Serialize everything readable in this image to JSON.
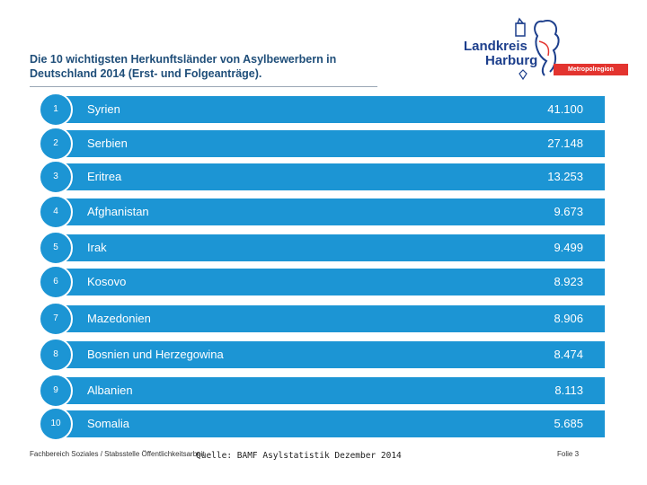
{
  "slide": {
    "title_line1": "Die 10 wichtigsten Herkunftsländer von Asylbewerbern in",
    "title_line2": "Deutschland 2014 (Erst- und Folgeanträge)."
  },
  "logo": {
    "line1": "Landkreis",
    "line2": "Harburg",
    "tagline": "Metropolregion Hamburg",
    "colors": {
      "primary": "#1d3f8c",
      "accent": "#e3342f"
    }
  },
  "colors": {
    "row_fill": "#1c95d4",
    "title": "#1f4e79"
  },
  "ranking": [
    {
      "rank": "1",
      "country": "Syrien",
      "value": "41.100"
    },
    {
      "rank": "2",
      "country": "Serbien",
      "value": "27.148"
    },
    {
      "rank": "3",
      "country": "Eritrea",
      "value": "13.253"
    },
    {
      "rank": "4",
      "country": "Afghanistan",
      "value": "9.673"
    },
    {
      "rank": "5",
      "country": "Irak",
      "value": "9.499"
    },
    {
      "rank": "6",
      "country": "Kosovo",
      "value": "8.923"
    },
    {
      "rank": "7",
      "country": "Mazedonien",
      "value": "8.906"
    },
    {
      "rank": "8",
      "country": "Bosnien und Herzegowina",
      "value": "8.474"
    },
    {
      "rank": "9",
      "country": "Albanien",
      "value": "8.113"
    },
    {
      "rank": "10",
      "country": "Somalia",
      "value": "5.685"
    }
  ],
  "footer": {
    "department": "Fachbereich Soziales / Stabsstelle Öffentlichkeitsarbeit",
    "source": "Quelle: BAMF Asylstatistik Dezember 2014",
    "page": "Folie 3"
  }
}
